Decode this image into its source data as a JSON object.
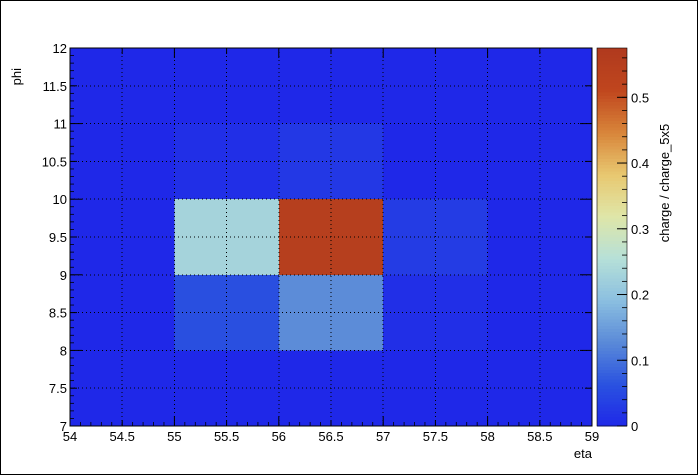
{
  "chart_data": {
    "type": "heatmap",
    "title": "",
    "xlabel": "eta",
    "ylabel": "phi",
    "zlabel": "charge / charge_5x5",
    "xlim": [
      54,
      59
    ],
    "ylim": [
      7,
      12
    ],
    "zlim": [
      0,
      0.575
    ],
    "grid": true,
    "colorscale": "ROOT kBird-like (blue to orange-red)",
    "x_ticks": [
      "54",
      "54.5",
      "55",
      "55.5",
      "56",
      "56.5",
      "57",
      "57.5",
      "58",
      "58.5",
      "59"
    ],
    "y_ticks": [
      "7",
      "7.5",
      "8",
      "8.5",
      "9",
      "9.5",
      "10",
      "10.5",
      "11",
      "11.5",
      "12"
    ],
    "z_ticks": [
      "0",
      "0.1",
      "0.2",
      "0.3",
      "0.4",
      "0.5"
    ],
    "bins": {
      "x_edges": [
        54,
        55,
        56,
        57,
        58,
        59
      ],
      "y_edges": [
        7,
        8,
        9,
        10,
        11,
        12
      ]
    },
    "cells": [
      {
        "x": [
          54,
          55
        ],
        "y": [
          7,
          8
        ],
        "z": 0
      },
      {
        "x": [
          55,
          56
        ],
        "y": [
          7,
          8
        ],
        "z": 0
      },
      {
        "x": [
          56,
          57
        ],
        "y": [
          7,
          8
        ],
        "z": 0
      },
      {
        "x": [
          57,
          58
        ],
        "y": [
          7,
          8
        ],
        "z": 0
      },
      {
        "x": [
          58,
          59
        ],
        "y": [
          7,
          8
        ],
        "z": 0
      },
      {
        "x": [
          54,
          55
        ],
        "y": [
          8,
          9
        ],
        "z": 0
      },
      {
        "x": [
          55,
          56
        ],
        "y": [
          8,
          9
        ],
        "z": 0.06
      },
      {
        "x": [
          56,
          57
        ],
        "y": [
          8,
          9
        ],
        "z": 0.13
      },
      {
        "x": [
          57,
          58
        ],
        "y": [
          8,
          9
        ],
        "z": 0.01
      },
      {
        "x": [
          58,
          59
        ],
        "y": [
          8,
          9
        ],
        "z": 0
      },
      {
        "x": [
          54,
          55
        ],
        "y": [
          9,
          10
        ],
        "z": 0
      },
      {
        "x": [
          55,
          56
        ],
        "y": [
          9,
          10
        ],
        "z": 0.23
      },
      {
        "x": [
          56,
          57
        ],
        "y": [
          9,
          10
        ],
        "z": 0.55
      },
      {
        "x": [
          57,
          58
        ],
        "y": [
          9,
          10
        ],
        "z": 0.03
      },
      {
        "x": [
          58,
          59
        ],
        "y": [
          9,
          10
        ],
        "z": 0
      },
      {
        "x": [
          54,
          55
        ],
        "y": [
          10,
          11
        ],
        "z": 0
      },
      {
        "x": [
          55,
          56
        ],
        "y": [
          10,
          11
        ],
        "z": 0.01
      },
      {
        "x": [
          56,
          57
        ],
        "y": [
          10,
          11
        ],
        "z": 0.025
      },
      {
        "x": [
          57,
          58
        ],
        "y": [
          10,
          11
        ],
        "z": 0
      },
      {
        "x": [
          58,
          59
        ],
        "y": [
          10,
          11
        ],
        "z": 0
      },
      {
        "x": [
          54,
          55
        ],
        "y": [
          11,
          12
        ],
        "z": 0
      },
      {
        "x": [
          55,
          56
        ],
        "y": [
          11,
          12
        ],
        "z": 0
      },
      {
        "x": [
          56,
          57
        ],
        "y": [
          11,
          12
        ],
        "z": 0
      },
      {
        "x": [
          57,
          58
        ],
        "y": [
          11,
          12
        ],
        "z": 0
      },
      {
        "x": [
          58,
          59
        ],
        "y": [
          11,
          12
        ],
        "z": 0
      }
    ],
    "colors": {
      "low": "#2323e6",
      "stops": [
        "#1f28e8",
        "#2a52e0",
        "#5a8ad8",
        "#8bbfe0",
        "#b6e0d8",
        "#dfe6a8",
        "#e8c870",
        "#d8853a",
        "#c0461e",
        "#b03a1e"
      ]
    }
  }
}
